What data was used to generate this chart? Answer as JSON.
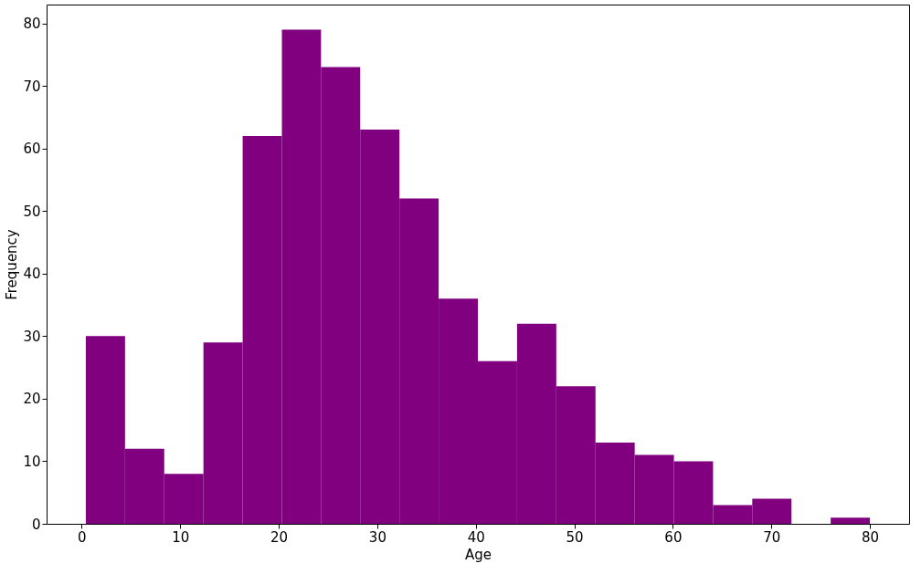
{
  "chart_data": {
    "type": "histogram",
    "xlabel": "Age",
    "ylabel": "Frequency",
    "color": "#800080",
    "bins": [
      0.42,
      4.4,
      8.38,
      12.36,
      16.34,
      20.32,
      24.29,
      28.27,
      32.25,
      36.23,
      40.21,
      44.19,
      48.17,
      52.15,
      56.13,
      60.11,
      64.08,
      68.06,
      72.04,
      76.02,
      80.0
    ],
    "values": [
      30,
      12,
      8,
      29,
      62,
      79,
      73,
      63,
      52,
      36,
      26,
      32,
      22,
      13,
      11,
      10,
      3,
      4,
      0,
      1
    ],
    "xlim": [
      -3.56,
      83.98
    ],
    "ylim": [
      0,
      83
    ],
    "xticks": [
      0,
      10,
      20,
      30,
      40,
      50,
      60,
      70,
      80
    ],
    "yticks": [
      0,
      10,
      20,
      30,
      40,
      50,
      60,
      70,
      80
    ],
    "grid": false
  }
}
